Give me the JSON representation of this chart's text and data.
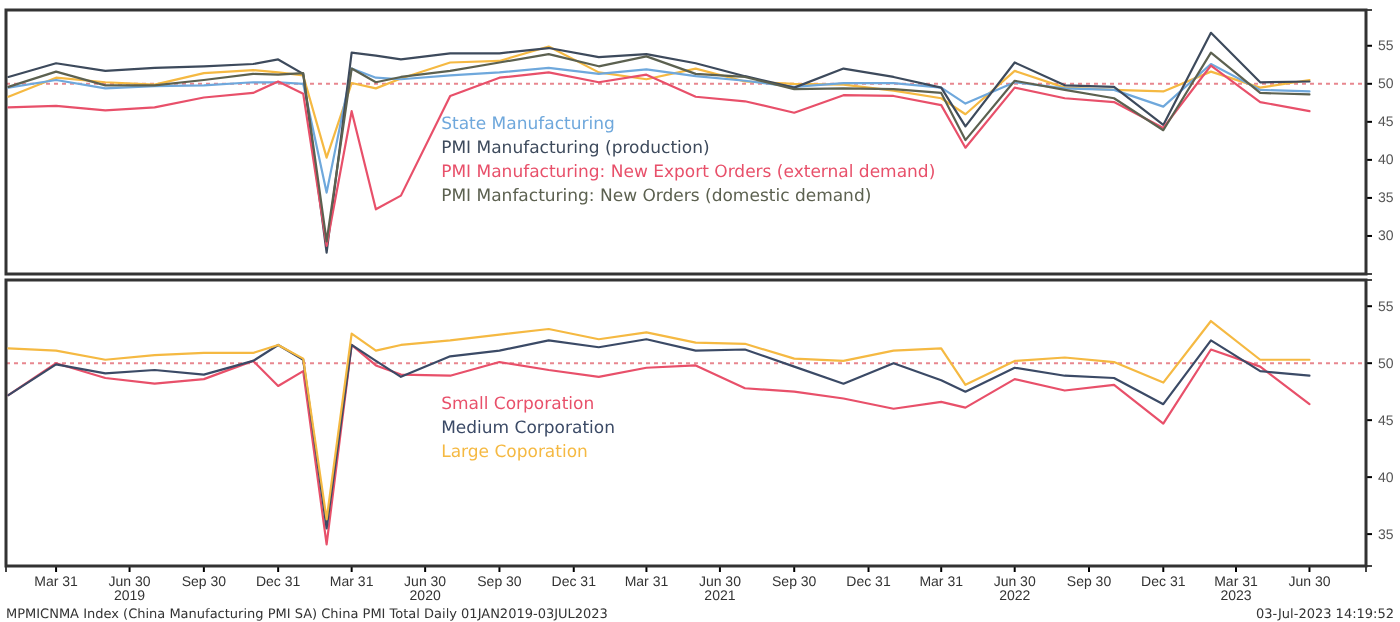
{
  "chart_data": [
    {
      "type": "line",
      "x": [
        "2019-01-31",
        "2019-03-31",
        "2019-05-31",
        "2019-07-31",
        "2019-09-30",
        "2019-11-30",
        "2019-12-31",
        "2020-01-31",
        "2020-02-29",
        "2020-03-31",
        "2020-04-30",
        "2020-05-31",
        "2020-07-31",
        "2020-09-30",
        "2020-11-30",
        "2021-01-31",
        "2021-03-31",
        "2021-05-31",
        "2021-07-31",
        "2021-09-30",
        "2021-11-30",
        "2022-01-31",
        "2022-03-31",
        "2022-04-30",
        "2022-06-30",
        "2022-08-31",
        "2022-10-31",
        "2022-12-31",
        "2023-02-28",
        "2023-04-30",
        "2023-06-30"
      ],
      "xlim": [
        "2019-01-28",
        "2023-09-08"
      ],
      "ylim": [
        25,
        59.7
      ],
      "yticks": [
        30,
        35,
        40,
        45,
        50,
        55
      ],
      "tick_labels": "y",
      "legend": "center",
      "line_style": "solid",
      "marker": "none",
      "ref_lines": [
        {
          "axis": "y",
          "value": 50,
          "color": "#e8878f",
          "line_style": "dotted"
        }
      ],
      "series": [
        {
          "color": "#f5b942",
          "values": [
            48.3,
            50.8,
            50.2,
            49.9,
            51.4,
            51.8,
            51.5,
            51.1,
            40.3,
            50.1,
            49.4,
            50.7,
            52.8,
            53.0,
            54.9,
            51.5,
            50.6,
            52.0,
            50.3,
            50.0,
            49.9,
            49.1,
            48.1,
            46.0,
            51.7,
            49.5,
            49.2,
            49.0,
            51.6,
            49.5,
            50.5
          ]
        },
        {
          "name": "State Manufacturing",
          "color": "#6fa8dc",
          "values": [
            49.5,
            50.5,
            49.4,
            49.7,
            49.8,
            50.2,
            50.2,
            50.0,
            35.7,
            52.0,
            50.8,
            50.6,
            51.1,
            51.5,
            52.1,
            51.3,
            51.9,
            51.0,
            50.4,
            49.6,
            50.1,
            50.1,
            49.5,
            47.4,
            50.2,
            49.4,
            49.2,
            47.0,
            52.6,
            49.2,
            49.0
          ]
        },
        {
          "name": "PMI Manufacturing (production)",
          "color": "#3d4a5c",
          "values": [
            50.9,
            52.7,
            51.7,
            52.1,
            52.3,
            52.6,
            53.2,
            51.3,
            27.8,
            54.1,
            53.7,
            53.2,
            54.0,
            54.0,
            54.7,
            53.5,
            53.9,
            52.7,
            51.0,
            49.5,
            52.0,
            50.9,
            49.5,
            44.4,
            52.8,
            49.8,
            49.6,
            44.6,
            56.7,
            50.2,
            50.3
          ]
        },
        {
          "name": "PMI Manufacturing: New Export Orders (external demand)",
          "color": "#e8506a",
          "values": [
            46.9,
            47.1,
            46.5,
            46.9,
            48.2,
            48.8,
            50.3,
            48.7,
            28.7,
            46.4,
            33.5,
            35.3,
            48.4,
            50.8,
            51.5,
            50.2,
            51.2,
            48.3,
            47.7,
            46.2,
            48.5,
            48.4,
            47.2,
            41.6,
            49.5,
            48.1,
            47.6,
            44.2,
            52.4,
            47.6,
            46.4
          ]
        },
        {
          "name": "PMI Manfacturing: New Orders (domestic demand)",
          "color": "#5c6150",
          "values": [
            49.6,
            51.6,
            49.8,
            49.8,
            50.5,
            51.3,
            51.2,
            51.4,
            29.3,
            52.0,
            50.2,
            50.9,
            51.7,
            52.8,
            53.9,
            52.3,
            53.6,
            51.3,
            50.9,
            49.3,
            49.4,
            49.3,
            48.8,
            42.6,
            50.4,
            49.2,
            48.1,
            43.9,
            54.1,
            48.8,
            48.6
          ]
        }
      ]
    },
    {
      "type": "line",
      "x": [
        "2019-01-31",
        "2019-03-31",
        "2019-05-31",
        "2019-07-31",
        "2019-09-30",
        "2019-11-30",
        "2019-12-31",
        "2020-01-31",
        "2020-02-29",
        "2020-03-31",
        "2020-04-30",
        "2020-05-31",
        "2020-07-31",
        "2020-09-30",
        "2020-11-30",
        "2021-01-31",
        "2021-03-31",
        "2021-05-31",
        "2021-07-31",
        "2021-09-30",
        "2021-11-30",
        "2022-01-31",
        "2022-03-31",
        "2022-04-30",
        "2022-06-30",
        "2022-08-31",
        "2022-10-31",
        "2022-12-31",
        "2023-02-28",
        "2023-04-30",
        "2023-06-30"
      ],
      "xlim": [
        "2019-01-28",
        "2023-09-08"
      ],
      "ylim": [
        32.2,
        57.3
      ],
      "yticks": [
        35,
        40,
        45,
        50,
        55
      ],
      "legend": "center",
      "line_style": "solid",
      "marker": "none",
      "xticks": [
        {
          "value": "2019-03-31",
          "label": "Mar 31"
        },
        {
          "value": "2019-06-30",
          "label": "Jun 30\n2019"
        },
        {
          "value": "2019-09-30",
          "label": "Sep 30"
        },
        {
          "value": "2019-12-31",
          "label": "Dec 31"
        },
        {
          "value": "2020-03-31",
          "label": "Mar 31"
        },
        {
          "value": "2020-06-30",
          "label": "Jun 30\n2020"
        },
        {
          "value": "2020-09-30",
          "label": "Sep 30"
        },
        {
          "value": "2020-12-31",
          "label": "Dec 31"
        },
        {
          "value": "2021-03-31",
          "label": "Mar 31"
        },
        {
          "value": "2021-06-30",
          "label": "Jun 30\n2021"
        },
        {
          "value": "2021-09-30",
          "label": "Sep 30"
        },
        {
          "value": "2021-12-31",
          "label": "Dec 31"
        },
        {
          "value": "2022-03-31",
          "label": "Mar 31"
        },
        {
          "value": "2022-06-30",
          "label": "Jun 30\n2022"
        },
        {
          "value": "2022-09-30",
          "label": "Sep 30"
        },
        {
          "value": "2022-12-31",
          "label": "Dec 31"
        },
        {
          "value": "2023-03-31",
          "label": "Mar 31\n2023"
        },
        {
          "value": "2023-06-30",
          "label": "Jun 30"
        }
      ],
      "ref_lines": [
        {
          "axis": "y",
          "value": 50,
          "color": "#e8878f",
          "line_style": "dotted"
        }
      ],
      "annotations": [
        "MPMICNMA Index (China Manufacturing PMI SA) China PMI Total  Daily 01JAN2019-03JUL2023",
        "03-Jul-2023 14:19:52"
      ],
      "series": [
        {
          "name": "Small Corporation",
          "color": "#e8506a",
          "values": [
            47.2,
            50.0,
            48.7,
            48.2,
            48.6,
            50.2,
            48.0,
            49.3,
            34.1,
            51.6,
            49.8,
            49.0,
            48.9,
            50.1,
            49.4,
            48.8,
            49.6,
            49.8,
            47.8,
            47.5,
            46.9,
            46.0,
            46.6,
            46.1,
            48.6,
            47.6,
            48.1,
            44.7,
            51.2,
            49.7,
            46.4
          ]
        },
        {
          "name": "Medium Corporation",
          "color": "#3b4a66",
          "values": [
            47.2,
            49.9,
            49.1,
            49.4,
            49.0,
            50.2,
            51.6,
            50.3,
            35.5,
            51.6,
            50.2,
            48.8,
            50.6,
            51.1,
            52.0,
            51.4,
            52.1,
            51.1,
            51.2,
            49.7,
            48.2,
            50.0,
            48.5,
            47.5,
            49.6,
            48.9,
            48.7,
            46.4,
            52.0,
            49.3,
            48.9
          ]
        },
        {
          "name": "Large Coporation",
          "color": "#f5b942",
          "values": [
            51.3,
            51.1,
            50.3,
            50.7,
            50.9,
            50.9,
            51.6,
            50.4,
            36.3,
            52.6,
            51.1,
            51.6,
            52.0,
            52.5,
            53.0,
            52.1,
            52.7,
            51.8,
            51.7,
            50.4,
            50.2,
            51.1,
            51.3,
            48.1,
            50.2,
            50.5,
            50.1,
            48.3,
            53.7,
            50.3,
            50.3
          ]
        }
      ]
    }
  ]
}
